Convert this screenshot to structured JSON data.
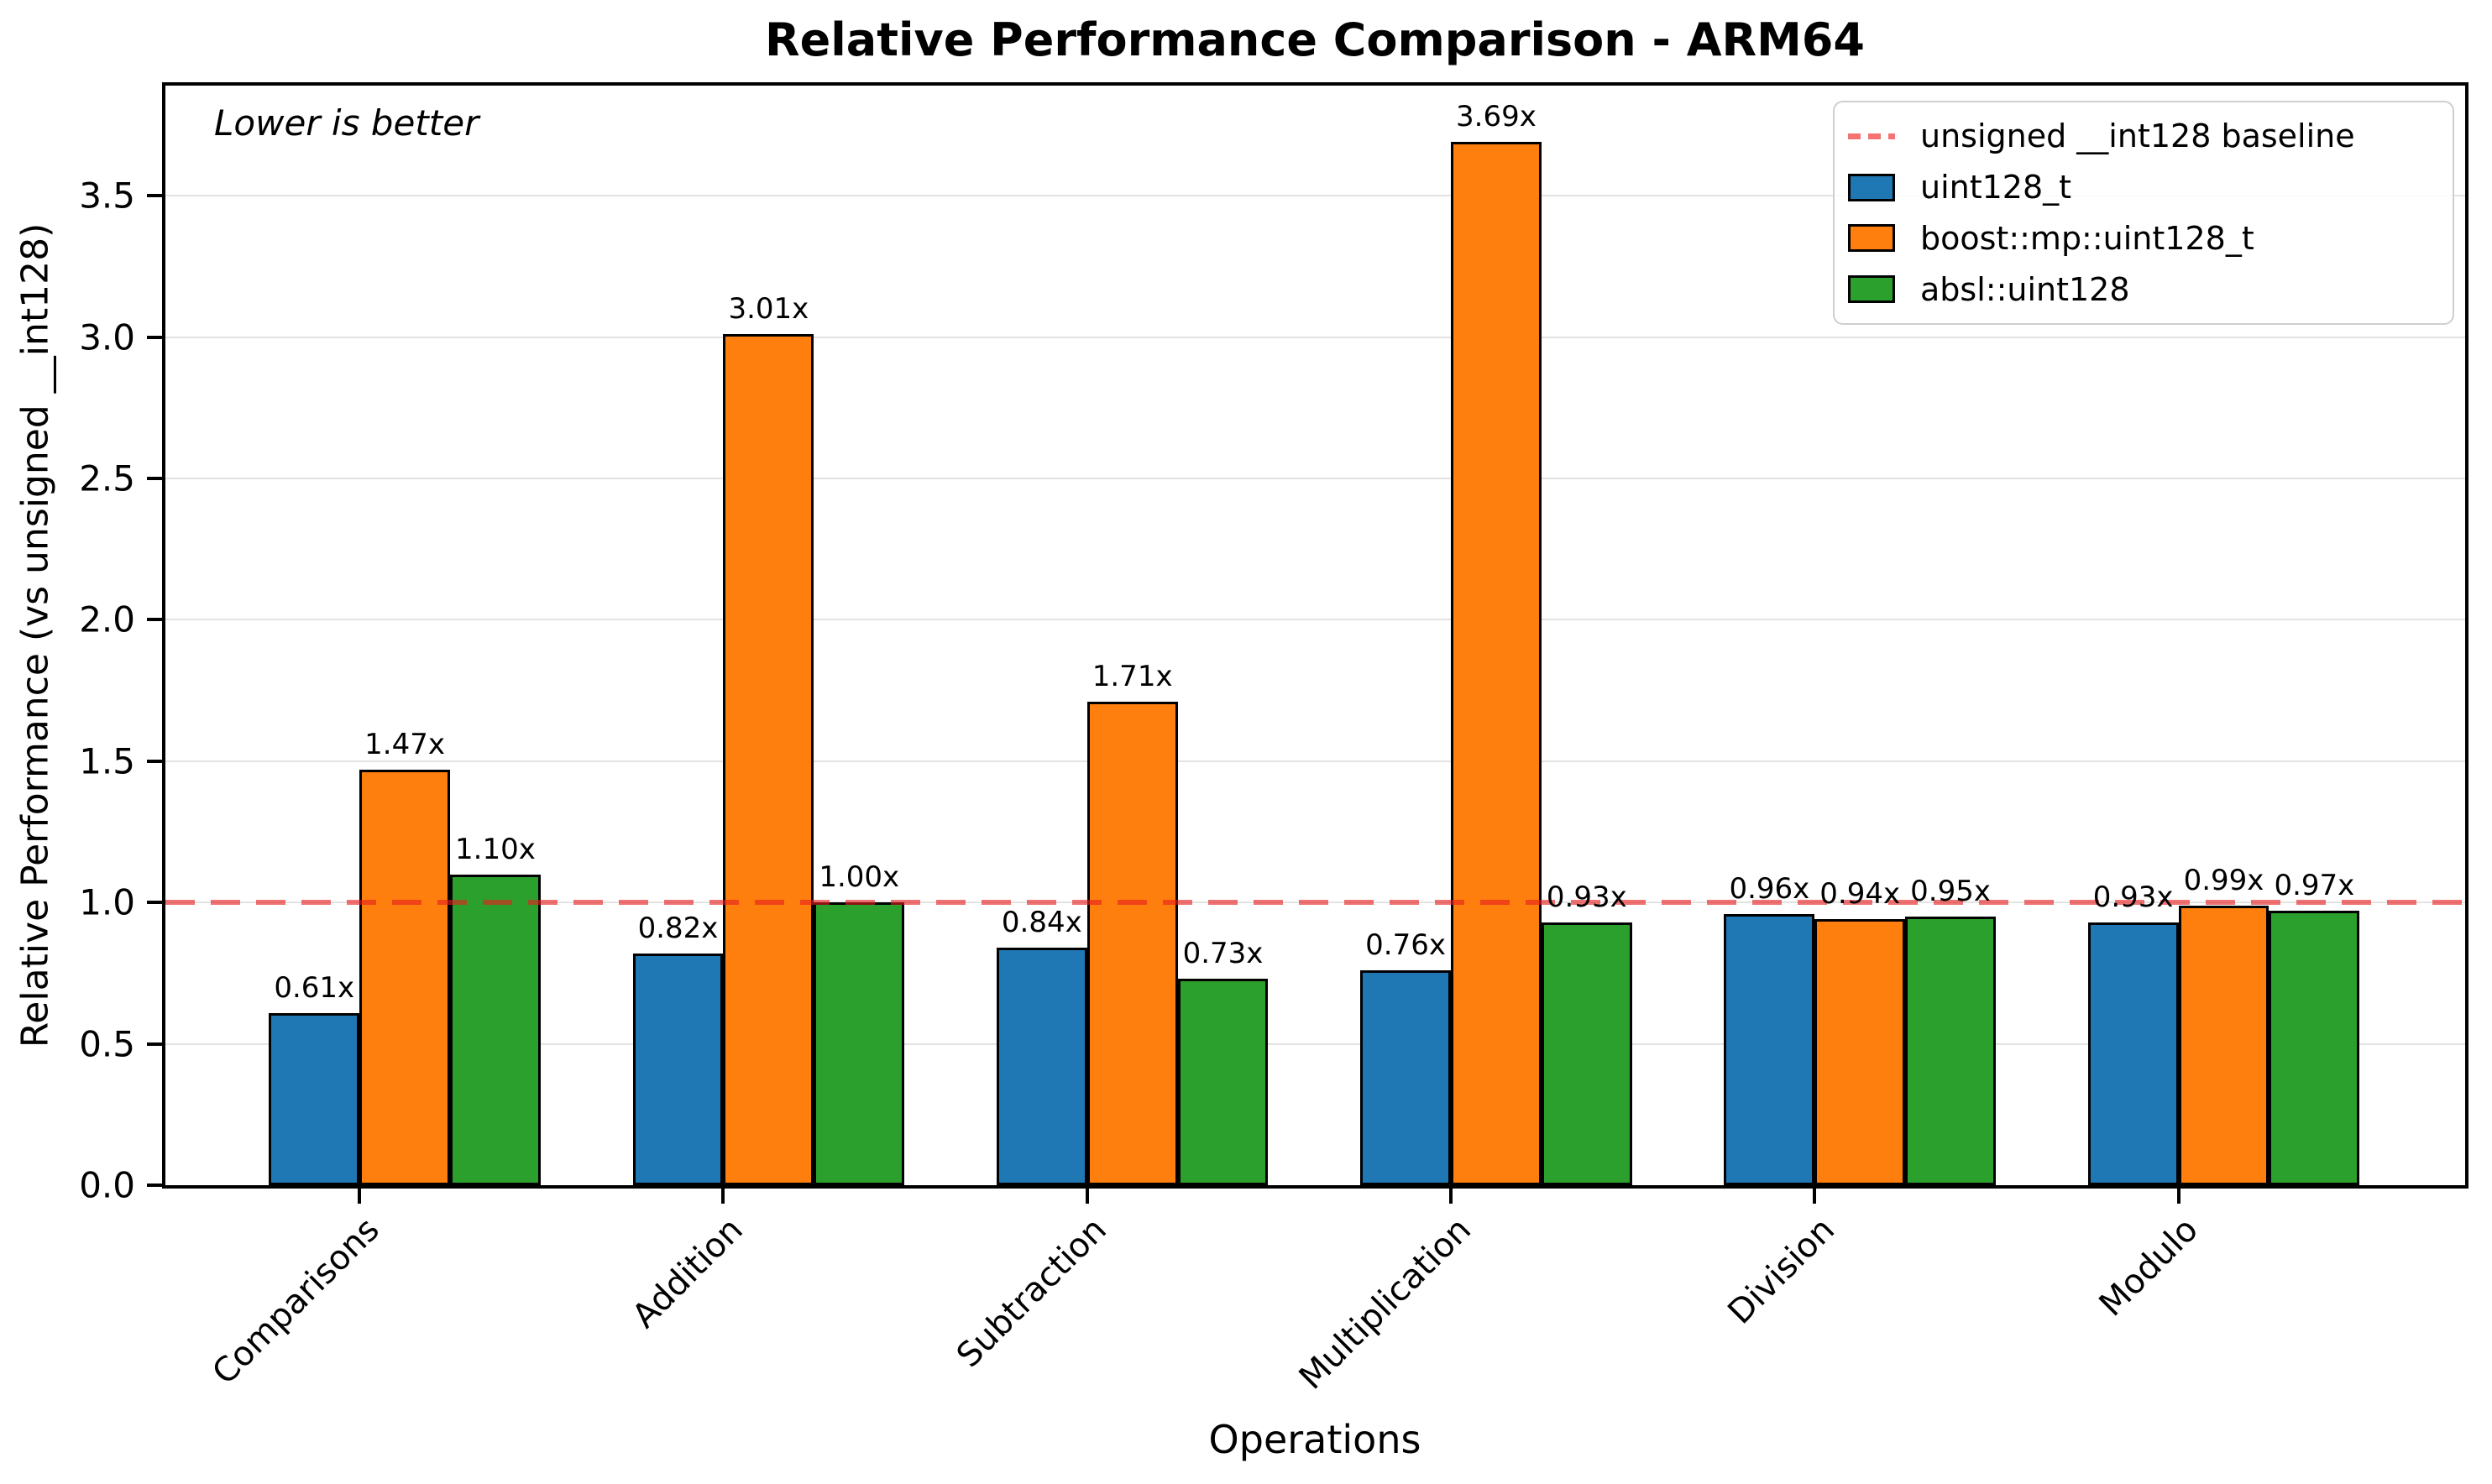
{
  "chart_data": {
    "type": "bar",
    "title": "Relative Performance Comparison - ARM64",
    "xlabel": "Operations",
    "ylabel": "Relative Performance (vs unsigned __int128)",
    "annotation": "Lower is better",
    "categories": [
      "Comparisons",
      "Addition",
      "Subtraction",
      "Multiplication",
      "Division",
      "Modulo"
    ],
    "series": [
      {
        "name": "uint128_t",
        "color": "#1f77b4",
        "values": [
          0.61,
          0.82,
          0.84,
          0.76,
          0.96,
          0.93
        ],
        "labels": [
          "0.61x",
          "0.82x",
          "0.84x",
          "0.76x",
          "0.96x",
          "0.93x"
        ]
      },
      {
        "name": "boost::mp::uint128_t",
        "color": "#ff7f0e",
        "values": [
          1.47,
          3.01,
          1.71,
          3.69,
          0.94,
          0.99
        ],
        "labels": [
          "1.47x",
          "3.01x",
          "1.71x",
          "3.69x",
          "0.94x",
          "0.99x"
        ]
      },
      {
        "name": "absl::uint128",
        "color": "#2ca02c",
        "values": [
          1.1,
          1.0,
          0.73,
          0.93,
          0.95,
          0.97
        ],
        "labels": [
          "1.10x",
          "1.00x",
          "0.73x",
          "0.93x",
          "0.95x",
          "0.97x"
        ]
      }
    ],
    "baseline": {
      "value": 1.0,
      "label": "unsigned __int128 baseline",
      "color": "#f57272"
    },
    "ylim": [
      0,
      3.89
    ],
    "yticks": [
      0.0,
      0.5,
      1.0,
      1.5,
      2.0,
      2.5,
      3.0,
      3.5
    ],
    "grid": true,
    "legend_position": "upper right"
  }
}
